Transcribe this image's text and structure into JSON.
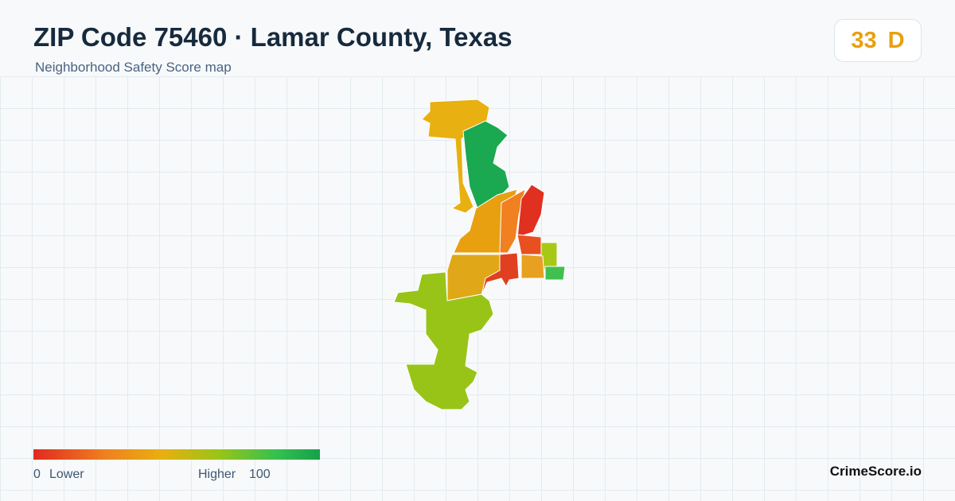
{
  "header": {
    "title": "ZIP Code 75460 · Lamar County, Texas",
    "subtitle": "Neighborhood Safety Score map"
  },
  "badge": {
    "score": "33",
    "grade": "D"
  },
  "legend": {
    "min": "0",
    "min_label": "Lower",
    "max_label": "Higher",
    "max": "100"
  },
  "brand": "CrimeScore.io"
}
